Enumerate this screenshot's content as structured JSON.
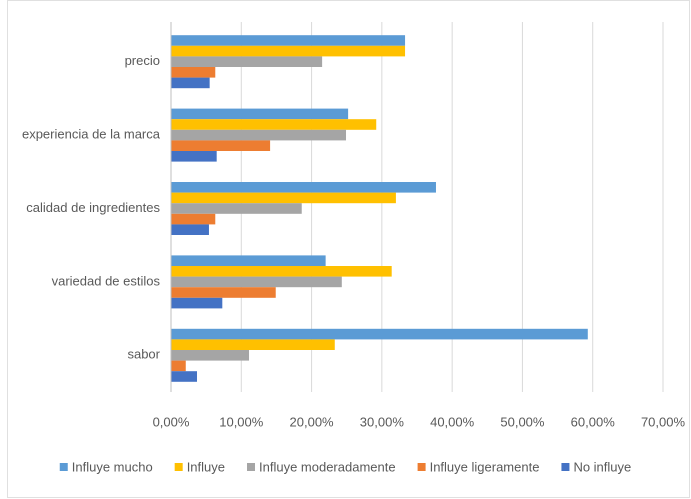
{
  "chart_data": {
    "type": "barh",
    "categories": [
      "precio",
      "experiencia de la marca",
      "calidad de ingredientes",
      "variedad de estilos",
      "sabor"
    ],
    "series": [
      {
        "name": "Influye mucho",
        "color": "#5b9bd5",
        "values": [
          33.3,
          25.2,
          37.7,
          22.0,
          59.3
        ]
      },
      {
        "name": "Influye",
        "color": "#ffc000",
        "values": [
          33.3,
          29.2,
          32.0,
          31.4,
          23.3
        ]
      },
      {
        "name": "Influye moderadamente",
        "color": "#a5a5a5",
        "values": [
          21.5,
          24.9,
          18.6,
          24.3,
          11.1
        ]
      },
      {
        "name": "Influye ligeramente",
        "color": "#ed7d31",
        "values": [
          6.3,
          14.1,
          6.3,
          14.9,
          2.1
        ]
      },
      {
        "name": "No influye",
        "color": "#4472c4",
        "values": [
          5.5,
          6.5,
          5.4,
          7.3,
          3.7
        ]
      }
    ],
    "xlim": [
      0,
      70
    ],
    "xticks": [
      {
        "value": 0,
        "label": "0,00%"
      },
      {
        "value": 10,
        "label": "10,00%"
      },
      {
        "value": 20,
        "label": "20,00%"
      },
      {
        "value": 30,
        "label": "30,00%"
      },
      {
        "value": 40,
        "label": "40,00%"
      },
      {
        "value": 50,
        "label": "50,00%"
      },
      {
        "value": 60,
        "label": "60,00%"
      },
      {
        "value": 70,
        "label": "70,00%"
      }
    ],
    "grid": true,
    "legend": "bottom"
  }
}
